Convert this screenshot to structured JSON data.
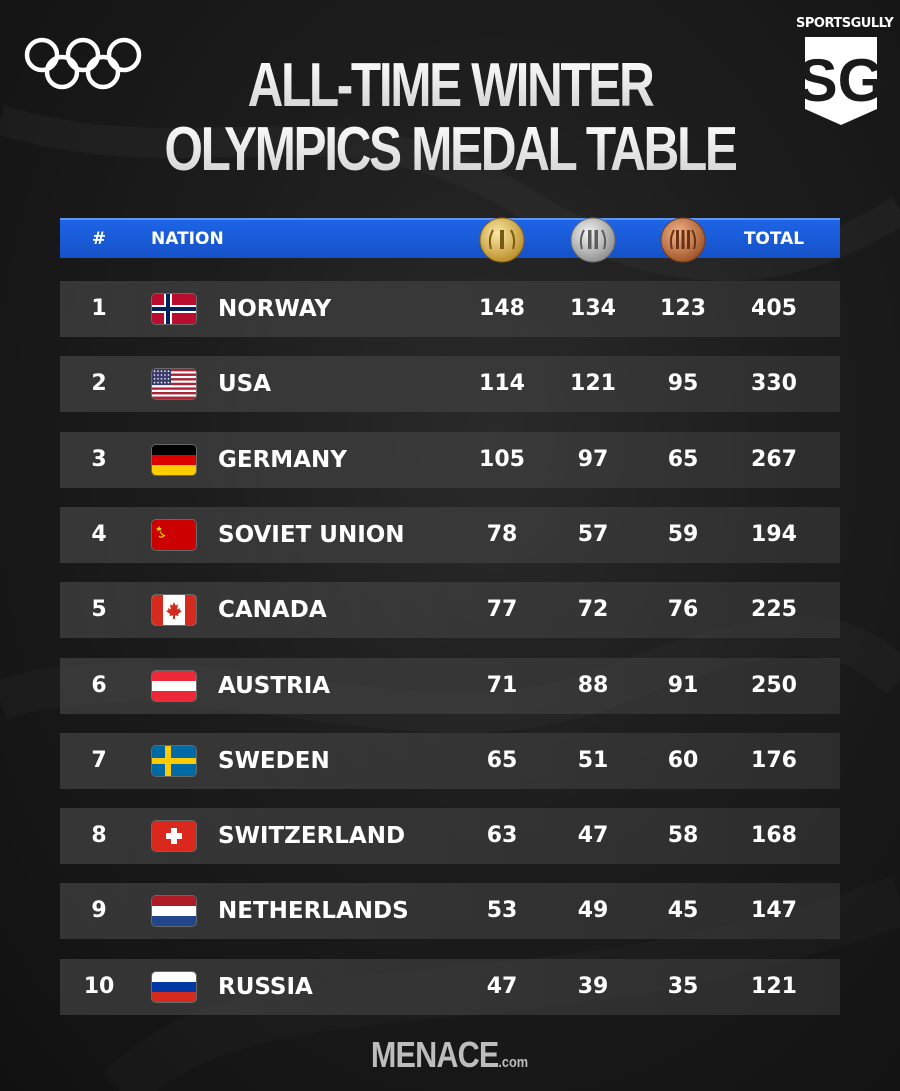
{
  "brand": {
    "name": "SPORTSGULLY",
    "logo_text": "SG"
  },
  "title": {
    "line1": "ALL-TIME WINTER",
    "line2": "OLYMPICS MEDAL TABLE"
  },
  "header": {
    "rank": "#",
    "nation": "NATION",
    "total": "TOTAL",
    "gold_icon": "gold-medal-icon",
    "silver_icon": "silver-medal-icon",
    "bronze_icon": "bronze-medal-icon"
  },
  "rows": [
    {
      "rank": "1",
      "nation": "NORWAY",
      "flag": "norway-flag",
      "gold": "148",
      "silver": "134",
      "bronze": "123",
      "total": "405"
    },
    {
      "rank": "2",
      "nation": "USA",
      "flag": "usa-flag",
      "gold": "114",
      "silver": "121",
      "bronze": "95",
      "total": "330"
    },
    {
      "rank": "3",
      "nation": "GERMANY",
      "flag": "germany-flag",
      "gold": "105",
      "silver": "97",
      "bronze": "65",
      "total": "267"
    },
    {
      "rank": "4",
      "nation": "SOVIET UNION",
      "flag": "soviet-union-flag",
      "gold": "78",
      "silver": "57",
      "bronze": "59",
      "total": "194"
    },
    {
      "rank": "5",
      "nation": "CANADA",
      "flag": "canada-flag",
      "gold": "77",
      "silver": "72",
      "bronze": "76",
      "total": "225"
    },
    {
      "rank": "6",
      "nation": "AUSTRIA",
      "flag": "austria-flag",
      "gold": "71",
      "silver": "88",
      "bronze": "91",
      "total": "250"
    },
    {
      "rank": "7",
      "nation": "SWEDEN",
      "flag": "sweden-flag",
      "gold": "65",
      "silver": "51",
      "bronze": "60",
      "total": "176"
    },
    {
      "rank": "8",
      "nation": "SWITZERLAND",
      "flag": "switzerland-flag",
      "gold": "63",
      "silver": "47",
      "bronze": "58",
      "total": "168"
    },
    {
      "rank": "9",
      "nation": "NETHERLANDS",
      "flag": "netherlands-flag",
      "gold": "53",
      "silver": "49",
      "bronze": "45",
      "total": "147"
    },
    {
      "rank": "10",
      "nation": "RUSSIA",
      "flag": "russia-flag",
      "gold": "47",
      "silver": "39",
      "bronze": "35",
      "total": "121"
    }
  ],
  "footer": {
    "main": "MENACE",
    "suffix": ".com"
  },
  "colors": {
    "header_blue": "#1552c8",
    "background": "#1c1c1c",
    "gold": "#d9b44a",
    "silver": "#c0c0c0",
    "bronze": "#c97a45"
  }
}
